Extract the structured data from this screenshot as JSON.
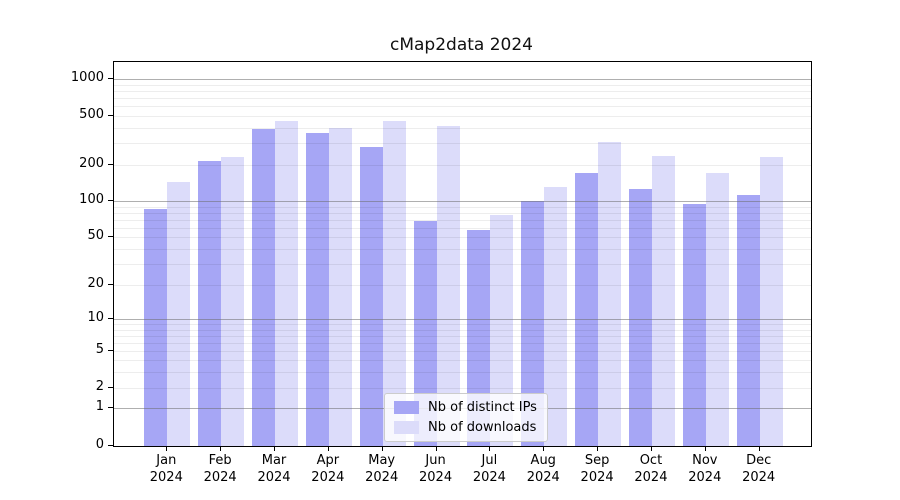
{
  "chart_data": {
    "type": "bar",
    "title": "cMap2data 2024",
    "categories": [
      "Jan",
      "Feb",
      "Mar",
      "Apr",
      "May",
      "Jun",
      "Jul",
      "Aug",
      "Sep",
      "Oct",
      "Nov",
      "Dec"
    ],
    "category_year": "2024",
    "series": [
      {
        "name": "Nb of distinct IPs",
        "color": "#a6a6f5",
        "values": [
          87,
          216,
          388,
          365,
          280,
          68,
          58,
          100,
          172,
          126,
          95,
          113
        ]
      },
      {
        "name": "Nb of downloads",
        "color": "#dcdcfa",
        "values": [
          144,
          234,
          455,
          400,
          450,
          415,
          77,
          131,
          309,
          237,
          173,
          234
        ]
      }
    ],
    "yscale": "symlog",
    "yticks": [
      0,
      1,
      2,
      5,
      10,
      20,
      50,
      100,
      200,
      500,
      1000
    ],
    "ylim": [
      0,
      1400
    ],
    "grid": true,
    "legend_position": "lower center"
  }
}
